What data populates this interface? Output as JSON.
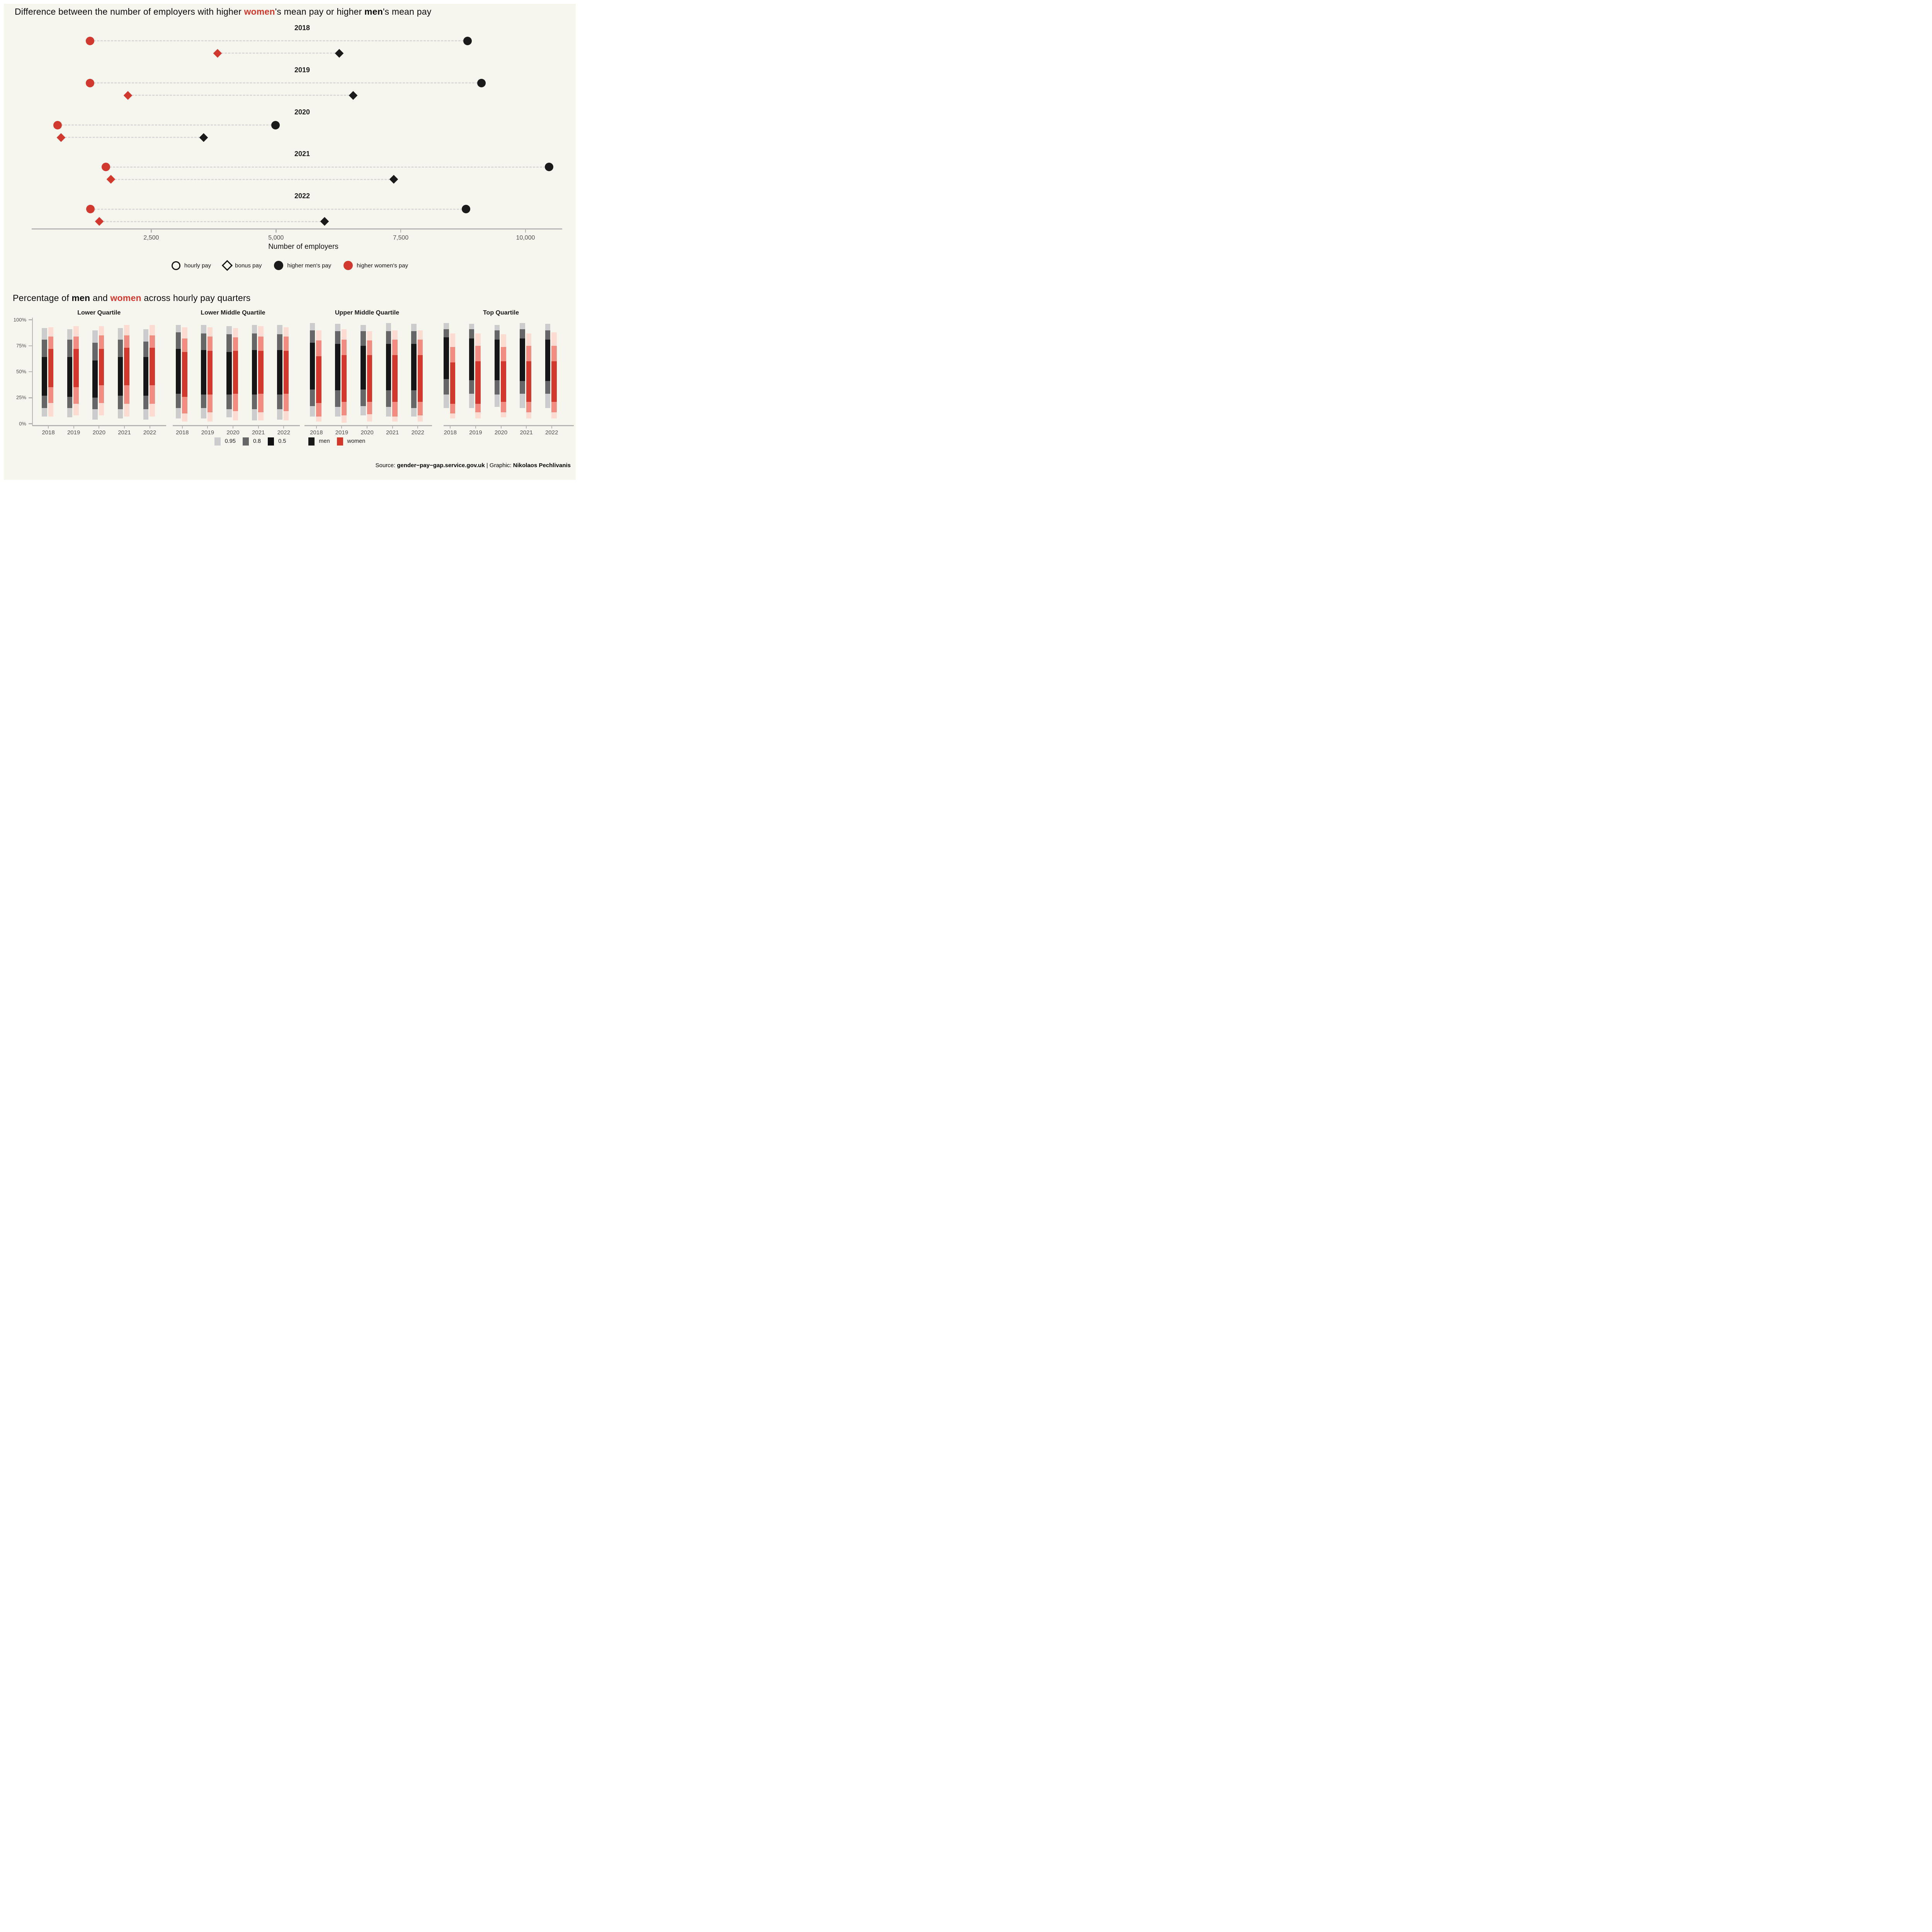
{
  "canvas_color": "#F7F6EE",
  "accent_red": "#D2392E",
  "chart_data": [
    {
      "type": "dumbbell",
      "title_segments": [
        {
          "text": "Difference between the number of employers with higher "
        },
        {
          "text": "women",
          "style": "w"
        },
        {
          "text": "'s mean pay or higher "
        },
        {
          "text": "men",
          "style": "m"
        },
        {
          "text": "'s mean pay"
        }
      ],
      "years": [
        "2018",
        "2019",
        "2020",
        "2021",
        "2022"
      ],
      "series": [
        {
          "year": "2018",
          "hourly": {
            "higher_womens_pay": 1270,
            "higher_mens_pay": 8840
          },
          "bonus": {
            "higher_womens_pay": 3830,
            "higher_mens_pay": 6270
          }
        },
        {
          "year": "2019",
          "hourly": {
            "higher_womens_pay": 1270,
            "higher_mens_pay": 9120
          },
          "bonus": {
            "higher_womens_pay": 2030,
            "higher_mens_pay": 6550
          }
        },
        {
          "year": "2020",
          "hourly": {
            "higher_womens_pay": 620,
            "higher_mens_pay": 4990
          },
          "bonus": {
            "higher_womens_pay": 690,
            "higher_mens_pay": 3550
          }
        },
        {
          "year": "2021",
          "hourly": {
            "higher_womens_pay": 1590,
            "higher_mens_pay": 10470
          },
          "bonus": {
            "higher_womens_pay": 1690,
            "higher_mens_pay": 7360
          }
        },
        {
          "year": "2022",
          "hourly": {
            "higher_womens_pay": 1280,
            "higher_mens_pay": 8810
          },
          "bonus": {
            "higher_womens_pay": 1460,
            "higher_mens_pay": 5970
          }
        }
      ],
      "x_axis": {
        "label": "Number of employers",
        "ticks": [
          2500,
          5000,
          7500,
          10000
        ],
        "tick_labels": [
          "2,500",
          "5,000",
          "7,500",
          "10,000"
        ],
        "range": [
          0,
          10700
        ],
        "grid": false
      },
      "legend": [
        {
          "icon": "open-circle",
          "label": "hourly pay"
        },
        {
          "icon": "open-diamond",
          "label": "bonus pay"
        },
        {
          "icon": "filled-circle",
          "color": "#1A1A1A",
          "label": "higher men's pay"
        },
        {
          "icon": "filled-circle",
          "color": "#D2392E",
          "label": "higher women's pay"
        }
      ],
      "marker_colors": {
        "higher_mens_pay": "#1A1A1A",
        "higher_womens_pay": "#D2392E"
      }
    },
    {
      "type": "interval-bars",
      "title_segments": [
        {
          "text": "Percentage of "
        },
        {
          "text": "men",
          "style": "m"
        },
        {
          "text": " and "
        },
        {
          "text": "women",
          "style": "w"
        },
        {
          "text": " across hourly pay quarters"
        }
      ],
      "y_axis": {
        "tick_labels": [
          "0%",
          "25%",
          "50%",
          "75%",
          "100%"
        ],
        "tick_values": [
          0,
          25,
          50,
          75,
          100
        ],
        "range": [
          0,
          100
        ]
      },
      "years": [
        "2018",
        "2019",
        "2020",
        "2021",
        "2022"
      ],
      "interval_levels": [
        "0.95",
        "0.8",
        "0.5"
      ],
      "interval_note": "each bar lists [p95_low, p80_low, p50_low, p50_high, p80_high, p95_high] in percent",
      "facets": [
        {
          "title": "Lower Quartile",
          "men": [
            [
              7,
              15,
              27,
              64,
              81,
              92
            ],
            [
              6,
              15,
              26,
              64,
              81,
              91
            ],
            [
              4,
              14,
              25,
              61,
              78,
              90
            ],
            [
              5,
              14,
              27,
              64,
              81,
              92
            ],
            [
              4,
              14,
              27,
              64,
              79,
              91
            ]
          ],
          "women": [
            [
              7,
              20,
              35,
              72,
              84,
              93
            ],
            [
              8,
              19,
              35,
              72,
              84,
              94
            ],
            [
              8,
              20,
              37,
              72,
              85,
              94
            ],
            [
              7,
              19,
              37,
              73,
              85,
              95
            ],
            [
              7,
              19,
              37,
              73,
              85,
              95
            ]
          ]
        },
        {
          "title": "Lower Middle Quartile",
          "men": [
            [
              5,
              15,
              29,
              72,
              88,
              95
            ],
            [
              5,
              15,
              28,
              71,
              87,
              95
            ],
            [
              6,
              14,
              28,
              69,
              86,
              94
            ],
            [
              3,
              14,
              28,
              71,
              87,
              95
            ],
            [
              4,
              14,
              28,
              71,
              86,
              95
            ]
          ],
          "women": [
            [
              2,
              10,
              26,
              69,
              82,
              93
            ],
            [
              2,
              11,
              28,
              70,
              84,
              93
            ],
            [
              3,
              12,
              29,
              70,
              83,
              92
            ],
            [
              3,
              11,
              29,
              70,
              84,
              94
            ],
            [
              3,
              12,
              29,
              70,
              84,
              93
            ]
          ]
        },
        {
          "title": "Upper Middle Quartile",
          "men": [
            [
              7,
              17,
              33,
              78,
              90,
              97
            ],
            [
              7,
              16,
              32,
              77,
              89,
              96
            ],
            [
              8,
              17,
              33,
              75,
              89,
              95
            ],
            [
              7,
              16,
              32,
              77,
              89,
              97
            ],
            [
              7,
              15,
              32,
              77,
              89,
              96
            ]
          ],
          "women": [
            [
              2,
              7,
              20,
              65,
              80,
              90
            ],
            [
              1,
              8,
              21,
              66,
              81,
              91
            ],
            [
              2,
              9,
              21,
              66,
              80,
              89
            ],
            [
              2,
              7,
              21,
              66,
              81,
              90
            ],
            [
              2,
              8,
              21,
              66,
              81,
              90
            ]
          ]
        },
        {
          "title": "Top Quartile",
          "men": [
            [
              15,
              28,
              43,
              83,
              91,
              97
            ],
            [
              15,
              29,
              42,
              82,
              91,
              96
            ],
            [
              16,
              28,
              42,
              81,
              90,
              95
            ],
            [
              15,
              29,
              41,
              82,
              91,
              97
            ],
            [
              15,
              29,
              41,
              81,
              90,
              96
            ]
          ],
          "women": [
            [
              5,
              10,
              19,
              59,
              74,
              87
            ],
            [
              5,
              11,
              19,
              60,
              75,
              87
            ],
            [
              6,
              11,
              21,
              60,
              74,
              86
            ],
            [
              5,
              11,
              21,
              60,
              75,
              87
            ],
            [
              5,
              11,
              21,
              60,
              75,
              88
            ]
          ]
        }
      ],
      "colors": {
        "men": [
          "#CCCCCC",
          "#666666",
          "#161616"
        ],
        "women": [
          "#FCDBD3",
          "#F08D80",
          "#D2392E"
        ]
      },
      "legend": {
        "alphas": [
          {
            "label": "0.95",
            "color": "#CCCCCC"
          },
          {
            "label": "0.8",
            "color": "#666666"
          },
          {
            "label": "0.5",
            "color": "#111111"
          }
        ],
        "genders": [
          {
            "label": "men",
            "color": "#1A1A1A"
          },
          {
            "label": "women",
            "color": "#D2392E"
          }
        ]
      }
    }
  ],
  "footer_segments": [
    {
      "text": "Source: "
    },
    {
      "text": "gender−pay−gap.service.gov.uk",
      "bold": true
    },
    {
      "text": " | Graphic: "
    },
    {
      "text": "Nikolaos Pechlivanis",
      "bold": true
    }
  ]
}
